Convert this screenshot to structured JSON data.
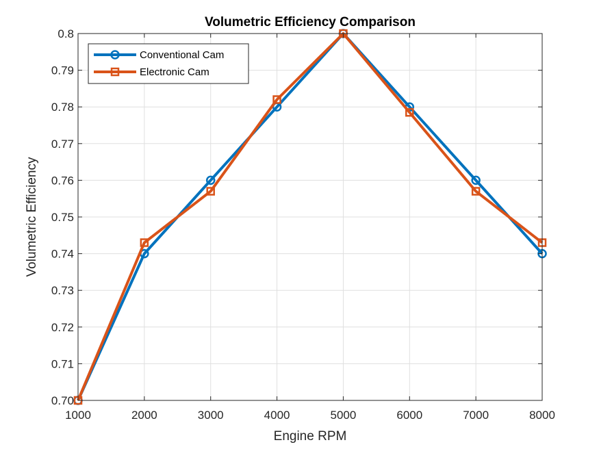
{
  "chart_data": {
    "type": "line",
    "title": "Volumetric Efficiency Comparison",
    "xlabel": "Engine RPM",
    "ylabel": "Volumetric Efficiency",
    "x": [
      1000,
      2000,
      3000,
      4000,
      5000,
      6000,
      7000,
      8000
    ],
    "xlim": [
      1000,
      8000
    ],
    "ylim": [
      0.7,
      0.8
    ],
    "xticks": [
      1000,
      2000,
      3000,
      4000,
      5000,
      6000,
      7000,
      8000
    ],
    "xtick_labels": [
      "1000",
      "2000",
      "3000",
      "4000",
      "5000",
      "6000",
      "7000",
      "8000"
    ],
    "yticks": [
      0.7,
      0.71,
      0.72,
      0.73,
      0.74,
      0.75,
      0.76,
      0.77,
      0.78,
      0.79,
      0.8
    ],
    "ytick_labels": [
      "0.70",
      "0.71",
      "0.72",
      "0.73",
      "0.74",
      "0.75",
      "0.76",
      "0.77",
      "0.78",
      "0.79",
      "0.8"
    ],
    "grid": true,
    "legend_position": "top-left",
    "series": [
      {
        "name": "Conventional Cam",
        "values": [
          0.7,
          0.74,
          0.76,
          0.78,
          0.8,
          0.78,
          0.76,
          0.74
        ],
        "color": "#0072BD",
        "marker": "circle"
      },
      {
        "name": "Electronic Cam",
        "values": [
          0.7,
          0.743,
          0.757,
          0.782,
          0.8,
          0.7785,
          0.757,
          0.743
        ],
        "color": "#D95319",
        "marker": "square"
      }
    ]
  }
}
